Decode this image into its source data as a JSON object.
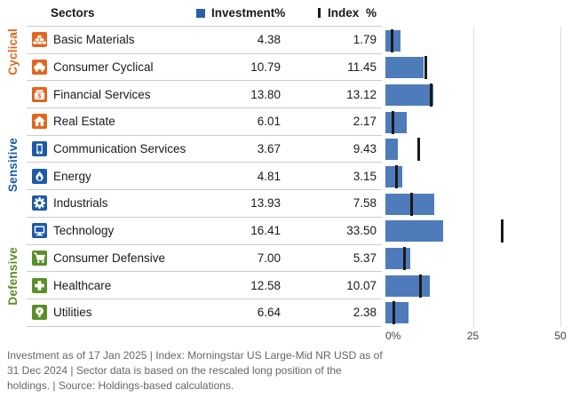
{
  "header": {
    "sectors_label": "Sectors",
    "investment_label": "Investment",
    "investment_pct": "%",
    "index_label": "Index",
    "index_pct": "%"
  },
  "colors": {
    "cyclical": "#E0661F",
    "sensitive": "#1E5AA5",
    "defensive": "#5A8F29",
    "bar": "#4E7CBA",
    "index_tick": "#1A1A1A",
    "legend_investment": "#2B5EA7",
    "gridline": "#DEDEDE",
    "divider": "#CCCCCC",
    "footnote_text": "#666666"
  },
  "groups": [
    {
      "label": "Cyclical",
      "color": "#E0661F",
      "sectors": [
        {
          "icon": "basic-materials-icon",
          "label": "Basic Materials",
          "investment": "4.38",
          "index": "1.79"
        },
        {
          "icon": "consumer-cyclical-icon",
          "label": "Consumer Cyclical",
          "investment": "10.79",
          "index": "11.45"
        },
        {
          "icon": "financial-services-icon",
          "label": "Financial Services",
          "investment": "13.80",
          "index": "13.12"
        },
        {
          "icon": "real-estate-icon",
          "label": "Real Estate",
          "investment": "6.01",
          "index": "2.17"
        }
      ]
    },
    {
      "label": "Sensitive",
      "color": "#1E5AA5",
      "sectors": [
        {
          "icon": "communication-services-icon",
          "label": "Communication Services",
          "investment": "3.67",
          "index": "9.43"
        },
        {
          "icon": "energy-icon",
          "label": "Energy",
          "investment": "4.81",
          "index": "3.15"
        },
        {
          "icon": "industrials-icon",
          "label": "Industrials",
          "investment": "13.93",
          "index": "7.58"
        },
        {
          "icon": "technology-icon",
          "label": "Technology",
          "investment": "16.41",
          "index": "33.50"
        }
      ]
    },
    {
      "label": "Defensive",
      "color": "#5A8F29",
      "sectors": [
        {
          "icon": "consumer-defensive-icon",
          "label": "Consumer Defensive",
          "investment": "7.00",
          "index": "5.37"
        },
        {
          "icon": "healthcare-icon",
          "label": "Healthcare",
          "investment": "12.58",
          "index": "10.07"
        },
        {
          "icon": "utilities-icon",
          "label": "Utilities",
          "investment": "6.64",
          "index": "2.38"
        }
      ]
    }
  ],
  "chart_data": {
    "type": "bar",
    "orientation": "horizontal",
    "title": "",
    "categories": [
      "Basic Materials",
      "Consumer Cyclical",
      "Financial Services",
      "Real Estate",
      "Communication Services",
      "Energy",
      "Industrials",
      "Technology",
      "Consumer Defensive",
      "Healthcare",
      "Utilities"
    ],
    "series": [
      {
        "name": "Investment %",
        "style": "bar",
        "color": "#4E7CBA",
        "values": [
          4.38,
          10.79,
          13.8,
          6.01,
          3.67,
          4.81,
          13.93,
          16.41,
          7.0,
          12.58,
          6.64
        ]
      },
      {
        "name": "Index %",
        "style": "tick-marker",
        "color": "#1A1A1A",
        "values": [
          1.79,
          11.45,
          13.12,
          2.17,
          9.43,
          3.15,
          7.58,
          33.5,
          5.37,
          10.07,
          2.38
        ]
      }
    ],
    "category_groups": [
      {
        "name": "Cyclical",
        "categories": [
          "Basic Materials",
          "Consumer Cyclical",
          "Financial Services",
          "Real Estate"
        ]
      },
      {
        "name": "Sensitive",
        "categories": [
          "Communication Services",
          "Energy",
          "Industrials",
          "Technology"
        ]
      },
      {
        "name": "Defensive",
        "categories": [
          "Consumer Defensive",
          "Healthcare",
          "Utilities"
        ]
      }
    ],
    "xlim": [
      0,
      50
    ],
    "x_ticks": [
      "0%",
      "25",
      "50"
    ],
    "grid": "vertical-lines-at-25-and-50",
    "legend_position": "top"
  },
  "axis": {
    "tick0": "0%",
    "tick25": "25",
    "tick50": "50",
    "max": 50
  },
  "footnote": {
    "text": "Investment as of 17 Jan 2025 | Index: Morningstar US Large-Mid NR USD as of 31 Dec 2024 | Sector data is based on the rescaled long position of the holdings. | Source: Holdings-based calculations."
  }
}
